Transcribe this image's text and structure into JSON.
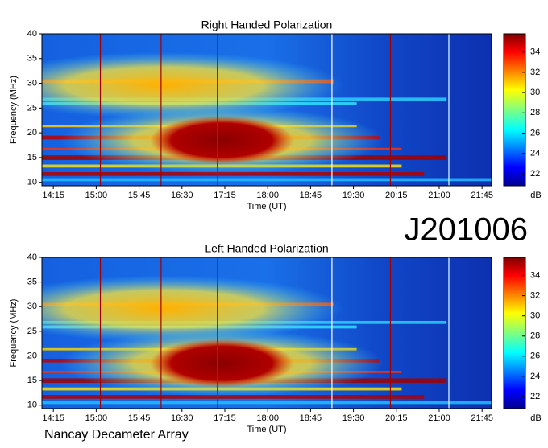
{
  "chart_data": [
    {
      "type": "heatmap",
      "title": "Right Handed Polarization",
      "xlabel": "Time (UT)",
      "ylabel": "Frequency (MHz)",
      "xlim": [
        843,
        1315
      ],
      "xticks": [
        {
          "value": 855,
          "label": "14:15"
        },
        {
          "value": 900,
          "label": "15:00"
        },
        {
          "value": 945,
          "label": "15:45"
        },
        {
          "value": 990,
          "label": "16:30"
        },
        {
          "value": 1035,
          "label": "17:15"
        },
        {
          "value": 1080,
          "label": "18:00"
        },
        {
          "value": 1125,
          "label": "18:45"
        },
        {
          "value": 1170,
          "label": "19:30"
        },
        {
          "value": 1215,
          "label": "20:15"
        },
        {
          "value": 1260,
          "label": "21:00"
        },
        {
          "value": 1305,
          "label": "21:45"
        }
      ],
      "ylim": [
        9.3,
        40
      ],
      "yticks": [
        10,
        15,
        20,
        25,
        30,
        35,
        40
      ],
      "colorbar": {
        "label": "dB",
        "lim": [
          20.8,
          35.8
        ],
        "ticks": [
          22,
          24,
          26,
          28,
          30,
          32,
          34
        ]
      }
    },
    {
      "type": "heatmap",
      "title": "Left Handed Polarization",
      "xlabel": "Time (UT)",
      "ylabel": "Frequency (MHz)",
      "xlim": [
        843,
        1315
      ],
      "xticks": [
        {
          "value": 855,
          "label": "14:15"
        },
        {
          "value": 900,
          "label": "15:00"
        },
        {
          "value": 945,
          "label": "15:45"
        },
        {
          "value": 990,
          "label": "16:30"
        },
        {
          "value": 1035,
          "label": "17:15"
        },
        {
          "value": 1080,
          "label": "18:00"
        },
        {
          "value": 1125,
          "label": "18:45"
        },
        {
          "value": 1170,
          "label": "19:30"
        },
        {
          "value": 1215,
          "label": "20:15"
        },
        {
          "value": 1260,
          "label": "21:00"
        },
        {
          "value": 1305,
          "label": "21:45"
        }
      ],
      "ylim": [
        9.3,
        40
      ],
      "yticks": [
        10,
        15,
        20,
        25,
        30,
        35,
        40
      ],
      "colorbar": {
        "label": "dB",
        "lim": [
          20.8,
          35.8
        ],
        "ticks": [
          22,
          24,
          26,
          28,
          30,
          32,
          34
        ]
      }
    }
  ],
  "observation": "J201006",
  "instrument": "Nancay Decameter Array"
}
